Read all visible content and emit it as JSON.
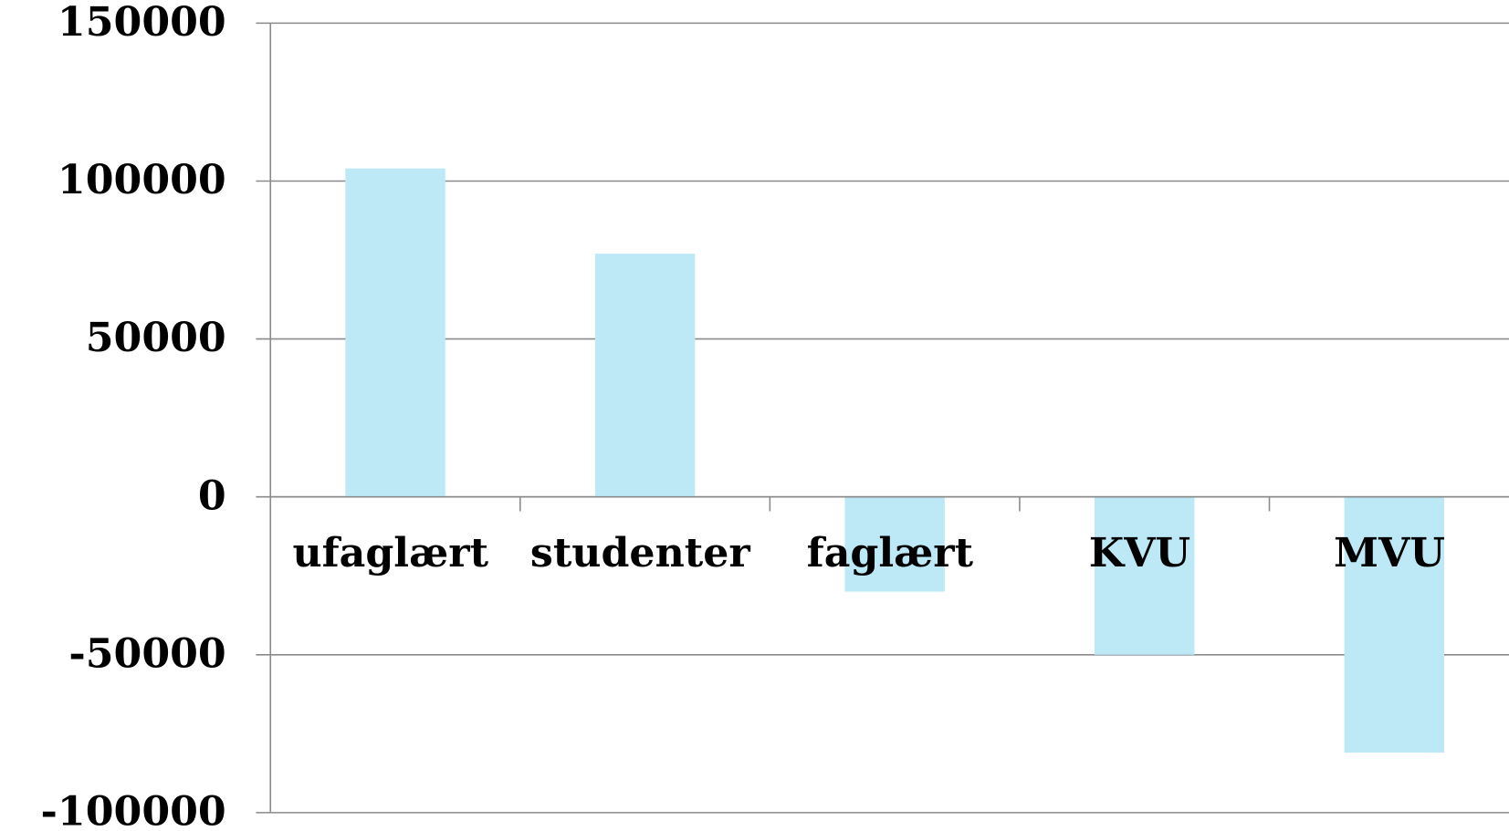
{
  "chart_data": {
    "type": "bar",
    "categories": [
      "ufaglært",
      "studenter",
      "faglært",
      "KVU",
      "MVU"
    ],
    "values": [
      104000,
      77000,
      -30000,
      -50000,
      -81000
    ],
    "color": "#bde9f7",
    "ylim": [
      -100000,
      150000
    ],
    "yticks": [
      -100000,
      -50000,
      0,
      50000,
      100000,
      150000
    ],
    "grid": true
  }
}
